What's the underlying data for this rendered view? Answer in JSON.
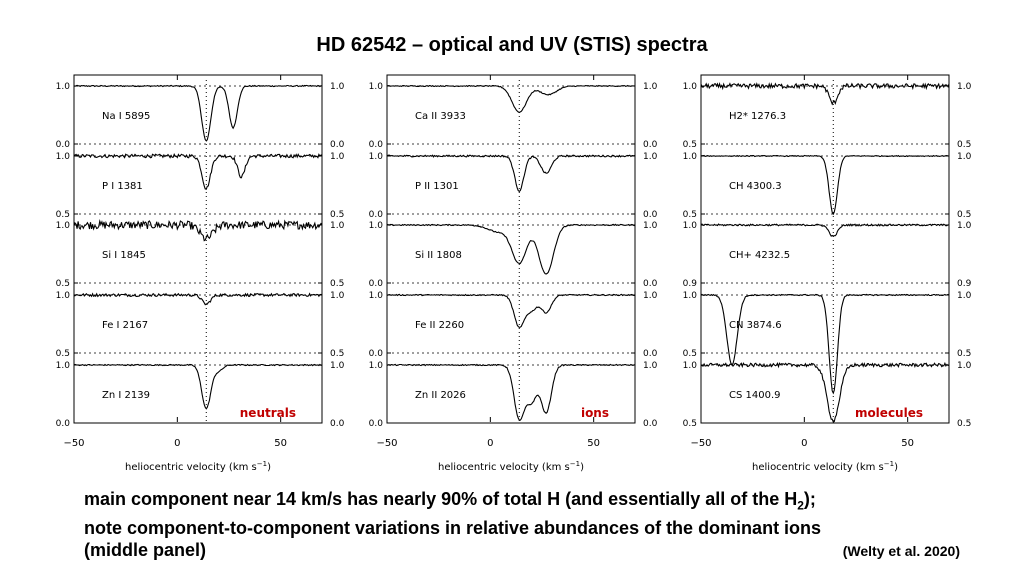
{
  "title": "HD 62542 – optical and UV (STIS) spectra",
  "caption": {
    "line1_pre": "main component near 14 km/s has nearly 90% of total H (and essentially all of the H",
    "line1_sub": "2",
    "line1_post": ");",
    "line2": "note component-to-component variations in relative abundances of the dominant ions",
    "line3": "(middle panel)"
  },
  "reference": "(Welty et al. 2020)",
  "chart_data": [
    {
      "type": "line",
      "panel": "neutrals",
      "tag": "neutrals",
      "xlabel": "heliocentric velocity (km s",
      "xlabel_sup": "−1",
      "xlim": [
        -50,
        70
      ],
      "xticks": [
        -50,
        0,
        50
      ],
      "marker_velocity": 14,
      "series": [
        {
          "name": "Na I 5895",
          "ylim": [
            0.0,
            1.0
          ],
          "yticks": [
            "0.0",
            "1.0"
          ],
          "noise": 0.01,
          "absorptions": [
            [
              14,
              0.95,
              2.2
            ],
            [
              27,
              0.72,
              2.0
            ]
          ]
        },
        {
          "name": "P I 1381",
          "ylim": [
            0.5,
            1.0
          ],
          "yticks": [
            "0.5",
            "1.0"
          ],
          "noise": 0.015,
          "absorptions": [
            [
              14,
              0.28,
              2.0
            ],
            [
              31,
              0.18,
              1.8
            ]
          ]
        },
        {
          "name": "Si I 1845",
          "ylim": [
            0.5,
            1.0
          ],
          "yticks": [
            "0.5",
            "1.0"
          ],
          "noise": 0.035,
          "absorptions": [
            [
              14,
              0.12,
              3.0
            ]
          ]
        },
        {
          "name": "Fe I 2167",
          "ylim": [
            0.5,
            1.0
          ],
          "yticks": [
            "0.5",
            "1.0"
          ],
          "noise": 0.012,
          "absorptions": [
            [
              14,
              0.08,
              2.0
            ]
          ]
        },
        {
          "name": "Zn I 2139",
          "ylim": [
            0.0,
            1.0
          ],
          "yticks": [
            "0.0",
            "1.0"
          ],
          "noise": 0.01,
          "absorptions": [
            [
              14,
              0.75,
              2.2
            ],
            [
              20,
              0.1,
              2.0
            ]
          ]
        }
      ]
    },
    {
      "type": "line",
      "panel": "ions",
      "tag": "ions",
      "xlabel": "heliocentric velocity (km s",
      "xlabel_sup": "−1",
      "xlim": [
        -50,
        70
      ],
      "xticks": [
        -50,
        0,
        50
      ],
      "marker_velocity": 14,
      "series": [
        {
          "name": "Ca II 3933",
          "ylim": [
            0.0,
            1.0
          ],
          "yticks": [
            "0.0",
            "1.0"
          ],
          "noise": 0.008,
          "absorptions": [
            [
              14,
              0.45,
              3.5
            ],
            [
              28,
              0.15,
              4.0
            ]
          ]
        },
        {
          "name": "P II 1301",
          "ylim": [
            0.0,
            1.0
          ],
          "yticks": [
            "0.0",
            "1.0"
          ],
          "noise": 0.015,
          "absorptions": [
            [
              14,
              0.6,
              2.2
            ],
            [
              27,
              0.3,
              2.5
            ]
          ]
        },
        {
          "name": "Si II 1808",
          "ylim": [
            0.0,
            1.0
          ],
          "yticks": [
            "0.0",
            "1.0"
          ],
          "noise": 0.01,
          "absorptions": [
            [
              4,
              0.12,
              5.0
            ],
            [
              14,
              0.65,
              3.5
            ],
            [
              27,
              0.85,
              3.5
            ]
          ]
        },
        {
          "name": "Fe II 2260",
          "ylim": [
            0.0,
            1.0
          ],
          "yticks": [
            "0.0",
            "1.0"
          ],
          "noise": 0.01,
          "absorptions": [
            [
              14,
              0.55,
              2.5
            ],
            [
              20,
              0.25,
              2.5
            ],
            [
              27,
              0.3,
              2.5
            ]
          ]
        },
        {
          "name": "Zn II 2026",
          "ylim": [
            0.0,
            1.0
          ],
          "yticks": [
            "0.0",
            "1.0"
          ],
          "noise": 0.01,
          "absorptions": [
            [
              14,
              0.92,
              2.5
            ],
            [
              20,
              0.6,
              2.5
            ],
            [
              27,
              0.82,
              2.5
            ]
          ]
        }
      ]
    },
    {
      "type": "line",
      "panel": "molecules",
      "tag": "molecules",
      "xlabel": "heliocentric velocity (km s",
      "xlabel_sup": "−1",
      "xlim": [
        -50,
        70
      ],
      "xticks": [
        -50,
        0,
        50
      ],
      "marker_velocity": 14,
      "series": [
        {
          "name": "H2* 1276.3",
          "ylim": [
            0.5,
            1.0
          ],
          "yticks": [
            "0.5",
            "1.0"
          ],
          "noise": 0.02,
          "absorptions": [
            [
              14,
              0.15,
              2.0
            ]
          ]
        },
        {
          "name": "CH 4300.3",
          "ylim": [
            0.5,
            1.0
          ],
          "yticks": [
            "0.5",
            "1.0"
          ],
          "noise": 0.004,
          "absorptions": [
            [
              14,
              0.5,
              2.0
            ]
          ]
        },
        {
          "name": "CH+ 4232.5",
          "ylim": [
            0.9,
            1.0
          ],
          "yticks": [
            "0.9",
            "1.0"
          ],
          "noise": 0.0015,
          "absorptions": [
            [
              14,
              0.02,
              2.0
            ]
          ]
        },
        {
          "name": "CN 3874.6",
          "ylim": [
            0.5,
            1.0
          ],
          "yticks": [
            "0.5",
            "1.0"
          ],
          "noise": 0.005,
          "absorptions": [
            [
              -35,
              0.6,
              2.5
            ],
            [
              14,
              0.85,
              2.0
            ]
          ]
        },
        {
          "name": "CS 1400.9",
          "ylim": [
            0.5,
            1.0
          ],
          "yticks": [
            "0.5",
            "1.0"
          ],
          "noise": 0.015,
          "absorptions": [
            [
              14,
              0.48,
              3.0
            ]
          ]
        }
      ]
    }
  ],
  "colors": {
    "tag": "#c00000",
    "ink": "#000000",
    "axis": "#000000"
  }
}
